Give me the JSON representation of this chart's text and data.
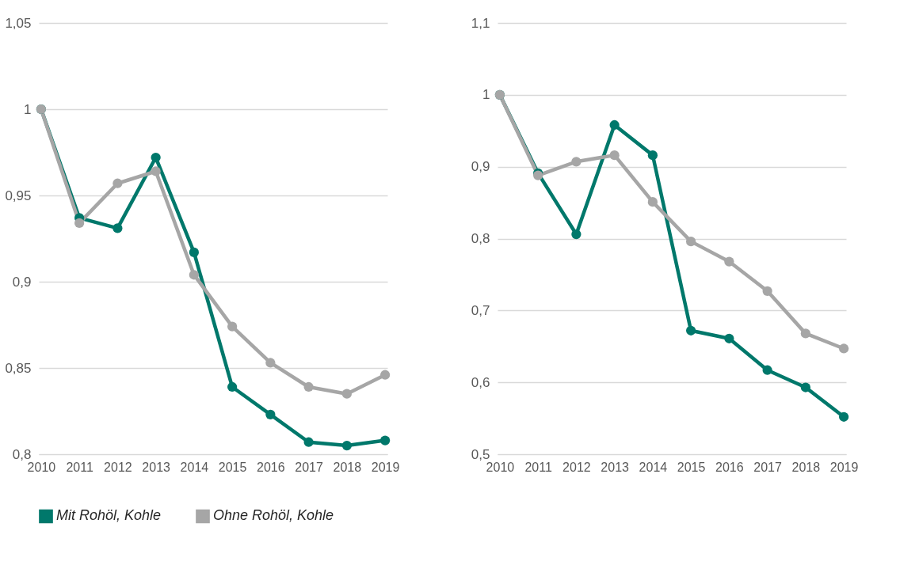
{
  "chart_data": [
    {
      "type": "line",
      "categories": [
        "2010",
        "2011",
        "2012",
        "2013",
        "2014",
        "2015",
        "2016",
        "2017",
        "2018",
        "2019"
      ],
      "series": [
        {
          "name": "Mit Rohöl, Kohle",
          "color": "#00786b",
          "values": [
            1.0,
            0.937,
            0.931,
            0.972,
            0.917,
            0.839,
            0.823,
            0.807,
            0.805,
            0.808
          ]
        },
        {
          "name": "Ohne Rohöl, Kohle",
          "color": "#a6a6a6",
          "values": [
            1.0,
            0.934,
            0.957,
            0.964,
            0.904,
            0.874,
            0.853,
            0.839,
            0.835,
            0.846
          ]
        }
      ],
      "ylim": [
        0.8,
        1.05
      ],
      "yticks": [
        {
          "value": 0.8,
          "label": "0,8"
        },
        {
          "value": 0.85,
          "label": "0,85"
        },
        {
          "value": 0.9,
          "label": "0,9"
        },
        {
          "value": 0.95,
          "label": "0,95"
        },
        {
          "value": 1,
          "label": "1"
        },
        {
          "value": 1.05,
          "label": "1,05"
        }
      ],
      "grid": "y",
      "legend": "bottom",
      "marker": "circle",
      "line_style": "solid"
    },
    {
      "type": "line",
      "categories": [
        "2010",
        "2011",
        "2012",
        "2013",
        "2014",
        "2015",
        "2016",
        "2017",
        "2018",
        "2019"
      ],
      "series": [
        {
          "name": "Mit Rohöl, Kohle",
          "color": "#00786b",
          "values": [
            1.0,
            0.891,
            0.806,
            0.958,
            0.916,
            0.672,
            0.661,
            0.617,
            0.593,
            0.552
          ]
        },
        {
          "name": "Ohne Rohöl, Kohle",
          "color": "#a6a6a6",
          "values": [
            1.0,
            0.888,
            0.907,
            0.916,
            0.851,
            0.796,
            0.768,
            0.727,
            0.668,
            0.647
          ]
        }
      ],
      "ylim": [
        0.5,
        1.1
      ],
      "yticks": [
        {
          "value": 0.5,
          "label": "0,5"
        },
        {
          "value": 0.6,
          "label": "0,6"
        },
        {
          "value": 0.7,
          "label": "0,7"
        },
        {
          "value": 0.8,
          "label": "0,8"
        },
        {
          "value": 0.9,
          "label": "0,9"
        },
        {
          "value": 1,
          "label": "1"
        },
        {
          "value": 1.1,
          "label": "1,1"
        }
      ],
      "grid": "y",
      "legend": "bottom",
      "marker": "circle",
      "line_style": "solid"
    }
  ]
}
